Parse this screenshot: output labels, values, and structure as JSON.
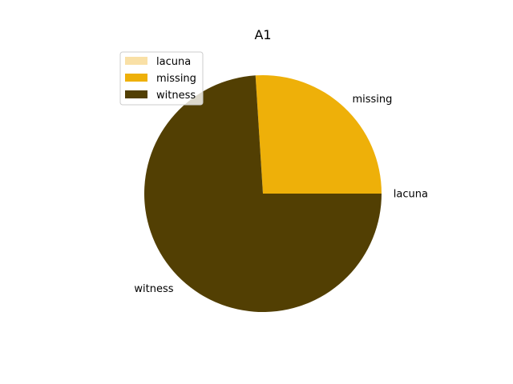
{
  "chart_data": {
    "type": "pie",
    "title": "A1",
    "slices": [
      {
        "label": "lacuna",
        "value": 0,
        "color": "#f9e0a6"
      },
      {
        "label": "missing",
        "value": 26,
        "color": "#eeb009"
      },
      {
        "label": "witness",
        "value": 74,
        "color": "#523f03"
      }
    ],
    "start_angle_deg": 0,
    "direction": "counterclockwise",
    "legend": {
      "placement": "upper-left",
      "entries": [
        "lacuna",
        "missing",
        "witness"
      ]
    }
  }
}
